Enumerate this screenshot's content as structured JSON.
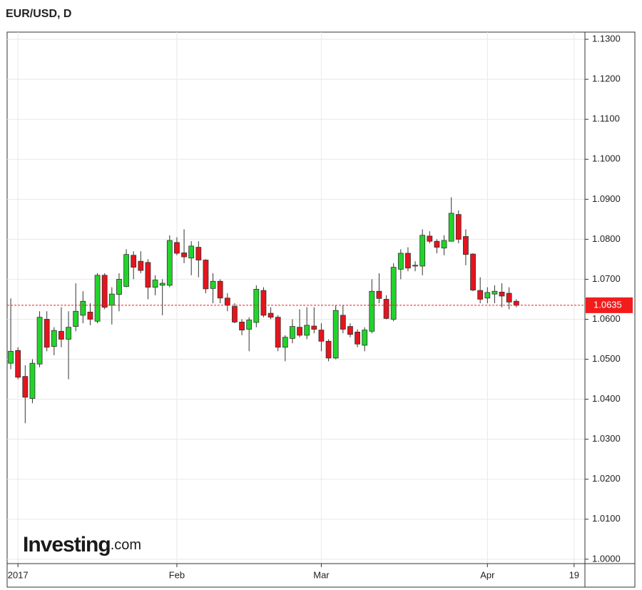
{
  "chart_data": {
    "type": "candlestick",
    "title": "EUR/USD, D",
    "watermark": "Investing",
    "watermark_suffix": ".com",
    "categories": [
      null,
      "2017",
      null,
      null,
      null,
      null,
      null,
      null,
      null,
      null,
      null,
      null,
      null,
      null,
      null,
      null,
      null,
      null,
      null,
      null,
      null,
      null,
      null,
      "Feb",
      null,
      null,
      null,
      null,
      null,
      null,
      null,
      null,
      null,
      null,
      null,
      null,
      null,
      null,
      null,
      null,
      null,
      null,
      null,
      "Mar",
      null,
      null,
      null,
      null,
      null,
      null,
      null,
      null,
      null,
      null,
      null,
      null,
      null,
      null,
      null,
      null,
      null,
      null,
      null,
      null,
      null,
      null,
      "Apr",
      null,
      null,
      null,
      null,
      null,
      null,
      null,
      null,
      null,
      null,
      null,
      "19",
      null
    ],
    "open": [
      1.049,
      1.0522,
      1.0457,
      1.0402,
      1.0488,
      1.06,
      1.0532,
      1.057,
      1.055,
      1.0582,
      1.061,
      1.0618,
      1.0595,
      1.071,
      1.0635,
      1.0662,
      1.0682,
      1.076,
      1.0745,
      1.0742,
      1.068,
      1.0685,
      1.0685,
      1.0792,
      1.0766,
      1.0753,
      1.078,
      1.0748,
      1.0677,
      1.0695,
      1.0653,
      1.0632,
      1.0593,
      1.0575,
      1.0592,
      1.0672,
      1.0615,
      1.0605,
      1.053,
      1.0552,
      1.058,
      1.056,
      1.0583,
      1.0573,
      1.0545,
      1.0503,
      1.061,
      1.0582,
      1.0568,
      1.0535,
      1.057,
      1.067,
      1.065,
      1.06,
      1.0725,
      1.0765,
      1.0735,
      1.0733,
      1.0808,
      1.0795,
      1.0778,
      1.0795,
      1.0862,
      1.0807,
      1.0763,
      1.0672,
      1.0653,
      1.0663,
      1.0668,
      1.0665,
      1.0645,
      null,
      null,
      null,
      null,
      null,
      null,
      null,
      null,
      null
    ],
    "high": [
      1.0652,
      1.053,
      1.0485,
      1.05,
      1.062,
      1.062,
      1.058,
      1.063,
      1.062,
      1.069,
      1.067,
      1.064,
      1.0715,
      1.0715,
      1.068,
      1.0715,
      1.0775,
      1.077,
      1.077,
      1.075,
      1.071,
      1.07,
      1.081,
      1.0805,
      1.0825,
      1.0795,
      1.0795,
      1.075,
      1.0715,
      1.07,
      1.0665,
      1.064,
      1.06,
      1.0605,
      1.0685,
      1.068,
      1.063,
      1.061,
      1.056,
      1.06,
      1.0625,
      1.063,
      1.063,
      1.059,
      1.055,
      1.0635,
      1.0635,
      1.059,
      1.0575,
      1.058,
      1.07,
      1.0715,
      1.066,
      1.074,
      1.0775,
      1.078,
      1.0745,
      1.0825,
      1.082,
      1.08,
      1.081,
      1.0905,
      1.0872,
      1.0825,
      1.0765,
      1.0705,
      1.068,
      1.0685,
      1.069,
      1.068,
      1.065,
      null,
      null,
      null,
      null,
      null,
      null,
      null,
      null,
      null
    ],
    "low": [
      1.0475,
      1.045,
      1.034,
      1.039,
      1.048,
      1.052,
      1.051,
      1.053,
      1.045,
      1.057,
      1.059,
      1.0585,
      1.059,
      1.0625,
      1.0587,
      1.062,
      1.068,
      1.07,
      1.0715,
      1.065,
      1.066,
      1.061,
      1.068,
      1.076,
      1.074,
      1.071,
      1.0705,
      1.0665,
      1.064,
      1.064,
      1.062,
      1.059,
      1.056,
      1.052,
      1.058,
      1.0605,
      1.06,
      1.052,
      1.0495,
      1.054,
      1.0555,
      1.055,
      1.0565,
      1.052,
      1.0495,
      1.05,
      1.0565,
      1.0555,
      1.053,
      1.052,
      1.0565,
      1.064,
      1.06,
      1.0595,
      1.07,
      1.072,
      1.072,
      1.071,
      1.079,
      1.0765,
      1.076,
      1.0795,
      1.079,
      1.0735,
      1.067,
      1.064,
      1.064,
      1.064,
      1.063,
      1.0625,
      1.063,
      null,
      null,
      null,
      null,
      null,
      null,
      null,
      null,
      null
    ],
    "close": [
      1.052,
      1.0455,
      1.0405,
      1.049,
      1.0605,
      1.053,
      1.0572,
      1.055,
      1.058,
      1.062,
      1.0645,
      1.06,
      1.071,
      1.063,
      1.0663,
      1.07,
      1.0762,
      1.073,
      1.0722,
      1.068,
      1.0698,
      1.069,
      1.0797,
      1.0765,
      1.0756,
      1.0783,
      1.0748,
      1.0676,
      1.0695,
      1.0653,
      1.0635,
      1.0593,
      1.0573,
      1.0598,
      1.0675,
      1.061,
      1.0605,
      1.053,
      1.0555,
      1.0582,
      1.056,
      1.0585,
      1.0575,
      1.0545,
      1.0503,
      1.0622,
      1.0575,
      1.0562,
      1.0538,
      1.0573,
      1.067,
      1.0652,
      1.0602,
      1.073,
      1.0765,
      1.0728,
      1.0733,
      1.081,
      1.0795,
      1.078,
      1.0797,
      1.0865,
      1.08,
      1.0762,
      1.0673,
      1.065,
      1.0667,
      1.067,
      1.0658,
      1.0643,
      1.0635,
      null,
      null,
      null,
      null,
      null,
      null,
      null,
      null,
      null
    ],
    "up_color": "#22d42a",
    "down_color": "#e5141d",
    "last_price_color": "#f21c1c",
    "last_price": {
      "value": 1.0635,
      "label": "1.0635"
    },
    "ylim": [
      0.9989,
      1.1318
    ],
    "yticks": [
      {
        "value": 1.0,
        "label": "1.0000"
      },
      {
        "value": 1.01,
        "label": "1.0100"
      },
      {
        "value": 1.02,
        "label": "1.0200"
      },
      {
        "value": 1.03,
        "label": "1.0300"
      },
      {
        "value": 1.04,
        "label": "1.0400"
      },
      {
        "value": 1.05,
        "label": "1.0500"
      },
      {
        "value": 1.06,
        "label": "1.0600"
      },
      {
        "value": 1.07,
        "label": "1.0700"
      },
      {
        "value": 1.08,
        "label": "1.0800"
      },
      {
        "value": 1.09,
        "label": "1.0900"
      },
      {
        "value": 1.1,
        "label": "1.1000"
      },
      {
        "value": 1.11,
        "label": "1.1100"
      },
      {
        "value": 1.12,
        "label": "1.1200"
      },
      {
        "value": 1.13,
        "label": "1.1300"
      }
    ],
    "grid": true
  }
}
